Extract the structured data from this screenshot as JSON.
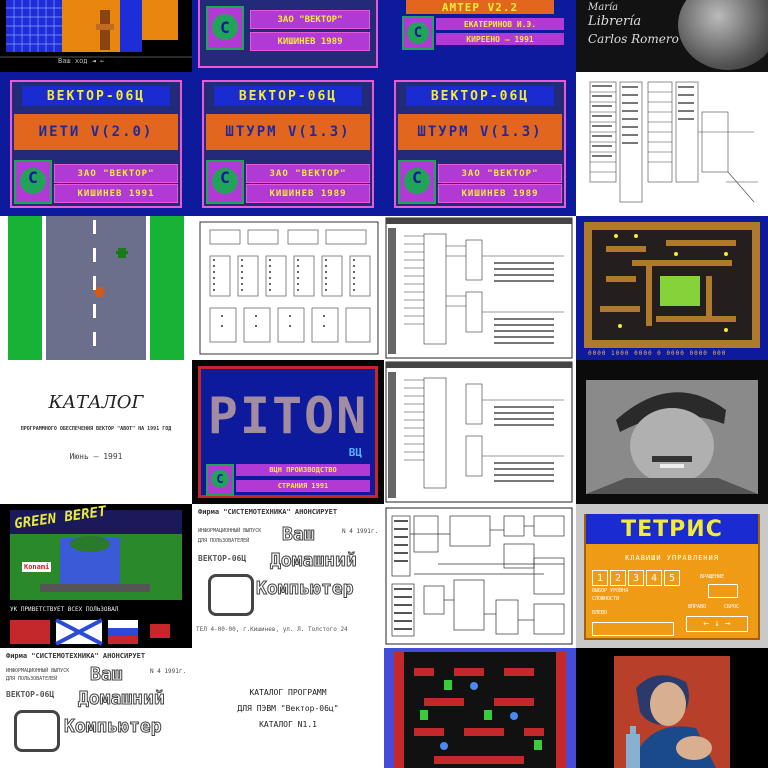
{
  "tiles": {
    "r1c1": {
      "status": "Ваш ход ◄ ←"
    },
    "r1c2": {
      "line1": "ЗАО \"ВЕКТОР\"",
      "line2": "КИШИНЕВ 1989"
    },
    "r1c3": {
      "title": "АМТЕР V2.2",
      "line1": "ЕКАТЕРИНОВ И.Э.",
      "line2": "КИРЕЕНО — 1991"
    },
    "r1c4": {
      "line1": "María",
      "line2": "Librería",
      "line3": "Carlos Romero"
    },
    "r2c1": {
      "title": "ВЕКТОР-06Ц",
      "game": "ИЕТИ V(2.0)",
      "line1": "ЗАО \"ВЕКТОР\"",
      "line2": "КИШИНЕВ 1991"
    },
    "r2c2": {
      "title": "ВЕКТОР-06Ц",
      "game": "ШТУРМ V(1.3)",
      "line1": "ЗАО \"ВЕКТОР\"",
      "line2": "КИШИНЕВ 1989"
    },
    "r2c3": {
      "title": "ВЕКТОР-06Ц",
      "game": "ШТУРМ V(1.3)",
      "line1": "ЗАО \"ВЕКТОР\"",
      "line2": "КИШИНЕВ 1989"
    },
    "r3c4": {
      "footer": "0000 1000 0000 0 0000 0000 000"
    },
    "r4c1": {
      "title": "КАТАЛОГ",
      "subtitle": "ПРОГРАММНОГО ОБЕСПЕЧЕНИЯ ВЕКТОР \"АВОТ\" НА 1991 ГОД",
      "date": "Июнь — 1991"
    },
    "r4c2": {
      "title": "PITON",
      "tag": "ВЦ",
      "line1": "ВЦН ПРОИЗВОДСТВО",
      "line2": "СТРАНИЯ 1991"
    },
    "r5c1": {
      "title": "GREEN BERET",
      "sub": "Konami",
      "footer": "УК ПРИВЕТСТВУЕТ ВСЕХ ПОЛЬЗОВАЛ"
    },
    "r5c2": {
      "header": "Фирма \"СИСТЕМОТЕХНИКА\" АНОНСИРУЕТ",
      "line1": "ИНФОРМАЦИОННЫЙ ВЫПУСК",
      "line2": "ДЛЯ ПОЛЬЗОВАТЕЛЕЙ",
      "line3": "ВЕКТОР-06Ц",
      "big1": "Ваш",
      "big2": "Домашний",
      "big3": "Компьютер",
      "issue": "N 4 1991г.",
      "footer": "ТЕЛ 4-00-00, г.Кишинев, ул. Л. Толстого 24"
    },
    "r5c4": {
      "title": "ТЕТРИС",
      "subtitle": "КЛАВИШИ УПРАВЛЕНИЯ",
      "digits": [
        "1",
        "2",
        "3",
        "4",
        "5"
      ],
      "left1": "ВЫБОР УРОВНЯ",
      "left2": "СЛОЖНОСТИ",
      "right1": "ВРАЩЕНИЕ",
      "label1": "ВЛЕВО",
      "label2": "ВПРАВО",
      "label3": "СБРОС",
      "arrows": "← ↓ →"
    },
    "r6c1": {
      "header": "Фирма \"СИСТЕМОТЕХНИКА\" АНОНСИРУЕТ",
      "line1": "ИНФОРМАЦИОННЫЙ ВЫПУСК",
      "line2": "ДЛЯ ПОЛЬЗОВАТЕЛЕЙ",
      "line3": "ВЕКТОР-06Ц",
      "big1": "Ваш",
      "big2": "Домашний",
      "big3": "Компьютер",
      "issue": "N 4 1991г."
    },
    "r6c2": {
      "line1": "КАТАЛОГ ПРОГРАММ",
      "line2": "ДЛЯ ПЭВМ \"Вектор-06ц\"",
      "line3": "КАТАЛОГ N1.1"
    }
  },
  "colors": {
    "vector_blue": "#0e1a9c",
    "vector_orange": "#e2661e",
    "vector_magenta": "#b23ad4",
    "vector_yellow": "#f4ea3a"
  }
}
